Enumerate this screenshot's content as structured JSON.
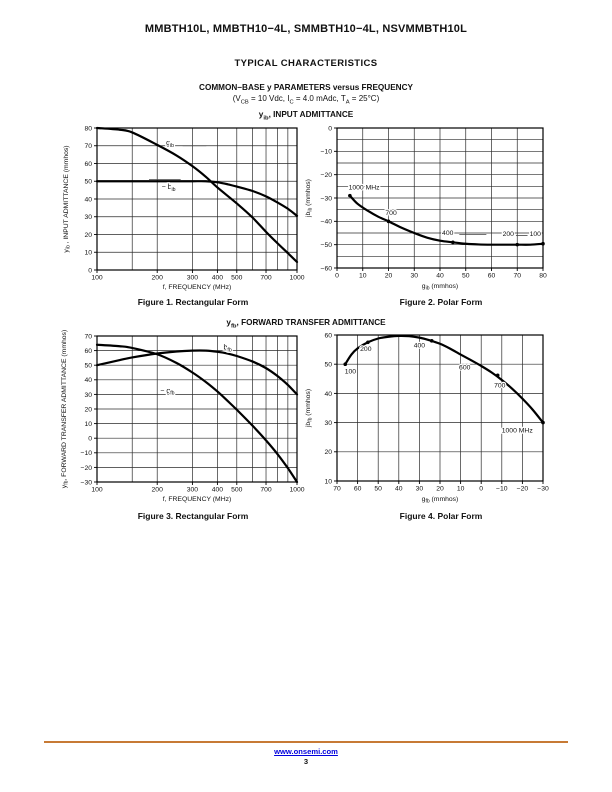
{
  "page": {
    "header_title": "MMBTH10L, MMBTH10−4L, SMMBTH10−4L, NSVMMBTH10L",
    "section_title": "TYPICAL CHARACTERISTICS",
    "group_title": "COMMON−BASE y PARAMETERS versus FREQUENCY",
    "group_conditions": "(V~CB~ = 10 Vdc, I~C~ = 4.0 mAdc, T~A~ = 25°C)",
    "row1_title": "y~ib~, INPUT ADMITTANCE",
    "row2_title": "y~fb~, FORWARD TRANSFER ADMITTANCE",
    "footer": {
      "link_label": "www.onsemi.com",
      "page_number": "3",
      "rule_color": "#c77a35",
      "link_color": "#0000dd"
    }
  },
  "chart_data": [
    {
      "name": "figure-1",
      "type": "line",
      "caption": "Figure 1. Rectangular Form",
      "xlabel": "f, FREQUENCY (MHz)",
      "ylabel": "y~ib~ , INPUT ADMITTANCE (mmhos)",
      "x_scale": "log",
      "x_range": [
        100,
        1000
      ],
      "x_gridlines": [
        100,
        150,
        200,
        300,
        400,
        500,
        600,
        700,
        800,
        900,
        1000
      ],
      "x_ticks": [
        {
          "v": 100,
          "t": "100"
        },
        {
          "v": 200,
          "t": "200"
        },
        {
          "v": 300,
          "t": "300"
        },
        {
          "v": 400,
          "t": "400"
        },
        {
          "v": 500,
          "t": "500"
        },
        {
          "v": 700,
          "t": "700"
        },
        {
          "v": 1000,
          "t": "1000"
        }
      ],
      "y_range": [
        0,
        80
      ],
      "y_grid_step": 10,
      "y_ticks": [
        {
          "v": 0,
          "t": "0"
        },
        {
          "v": 10,
          "t": "10"
        },
        {
          "v": 20,
          "t": "20"
        },
        {
          "v": 30,
          "t": "30"
        },
        {
          "v": 40,
          "t": "40"
        },
        {
          "v": 50,
          "t": "50"
        },
        {
          "v": 60,
          "t": "60"
        },
        {
          "v": 70,
          "t": "70"
        },
        {
          "v": 80,
          "t": "80"
        }
      ],
      "series": [
        {
          "name": "g_ib",
          "label": "g~ib~",
          "label_at": [
            232,
            70.3
          ],
          "leader": [
            [
              268,
              70
            ],
            [
              352,
              70
            ]
          ],
          "points": [
            [
              100,
              80
            ],
            [
              130,
              79
            ],
            [
              150,
              77.5
            ],
            [
              200,
              70.5
            ],
            [
              250,
              64.5
            ],
            [
              300,
              58.5
            ],
            [
              350,
              52.5
            ],
            [
              400,
              46.5
            ],
            [
              500,
              37.5
            ],
            [
              600,
              29.5
            ],
            [
              700,
              21.5
            ],
            [
              800,
              15
            ],
            [
              900,
              9.5
            ],
            [
              1000,
              4.5
            ]
          ]
        },
        {
          "name": "-b_ib",
          "label": "− b~ib~",
          "label_at": [
            228,
            45.5
          ],
          "leader": [
            [
              182,
              50.9
            ],
            [
              262,
              50.9
            ]
          ],
          "points": [
            [
              100,
              50
            ],
            [
              150,
              50
            ],
            [
              200,
              50
            ],
            [
              250,
              50
            ],
            [
              300,
              50
            ],
            [
              350,
              50
            ],
            [
              400,
              49.4
            ],
            [
              450,
              48.3
            ],
            [
              500,
              47
            ],
            [
              600,
              44.5
            ],
            [
              700,
              41.5
            ],
            [
              800,
              38
            ],
            [
              900,
              34.5
            ],
            [
              1000,
              30.5
            ]
          ]
        }
      ],
      "point_labels": []
    },
    {
      "name": "figure-2",
      "type": "line",
      "caption": "Figure 2. Polar Form",
      "xlabel": "g~ib~ (mmhos)",
      "ylabel": "jb~ib~ (mmhos)",
      "x_scale": "linear",
      "x_range": [
        0,
        80
      ],
      "x_grid_step": 10,
      "x_ticks": [
        {
          "v": 0,
          "t": "0"
        },
        {
          "v": 10,
          "t": "10"
        },
        {
          "v": 20,
          "t": "20"
        },
        {
          "v": 30,
          "t": "30"
        },
        {
          "v": 40,
          "t": "40"
        },
        {
          "v": 50,
          "t": "50"
        },
        {
          "v": 60,
          "t": "60"
        },
        {
          "v": 70,
          "t": "70"
        },
        {
          "v": 80,
          "t": "80"
        }
      ],
      "y_range": [
        -60,
        0
      ],
      "y_grid_step": 5,
      "y_ticks": [
        {
          "v": 0,
          "t": "0"
        },
        {
          "v": -10,
          "t": "−10"
        },
        {
          "v": -20,
          "t": "−20"
        },
        {
          "v": -30,
          "t": "−30"
        },
        {
          "v": -40,
          "t": "−40"
        },
        {
          "v": -50,
          "t": "−50"
        },
        {
          "v": -60,
          "t": "−60"
        }
      ],
      "series": [
        {
          "name": "y_ib_locus",
          "points": [
            [
              5,
              -29
            ],
            [
              8,
              -32.5
            ],
            [
              12,
              -35.5
            ],
            [
              16,
              -38
            ],
            [
              20,
              -40
            ],
            [
              25,
              -42.7
            ],
            [
              30,
              -45
            ],
            [
              35,
              -47
            ],
            [
              40,
              -48.3
            ],
            [
              45,
              -49
            ],
            [
              50,
              -49.6
            ],
            [
              55,
              -49.9
            ],
            [
              60,
              -50
            ],
            [
              65,
              -50
            ],
            [
              70,
              -50
            ],
            [
              75,
              -50
            ],
            [
              80,
              -49.6
            ]
          ],
          "markers": [
            [
              5,
              -29
            ],
            [
              20,
              -40
            ],
            [
              45,
              -49
            ],
            [
              70,
              -50
            ],
            [
              80,
              -49.6
            ]
          ]
        }
      ],
      "point_labels": [
        {
          "t": "1000 MHz",
          "x": 4.5,
          "y": -26.3,
          "anchor": "start"
        },
        {
          "t": "700",
          "x": 21,
          "y": -37.3,
          "anchor": "middle"
        },
        {
          "t": "400",
          "x": 43,
          "y": -45.8,
          "anchor": "middle",
          "leader": [
            [
              47.5,
              -45.6
            ],
            [
              58,
              -45.6
            ]
          ]
        },
        {
          "t": "200",
          "x": 66.5,
          "y": -46.3,
          "anchor": "middle",
          "leader": [
            [
              69.5,
              -46.1
            ],
            [
              74,
              -46.1
            ]
          ]
        },
        {
          "t": "100",
          "x": 77,
          "y": -46.3,
          "anchor": "middle"
        }
      ]
    },
    {
      "name": "figure-3",
      "type": "line",
      "caption": "Figure 3. Rectangular Form",
      "xlabel": "f, FREQUENCY (MHz)",
      "ylabel": "y~fb~, FORWARD TRANSFER ADMITTANCE (mmhos)",
      "x_scale": "log",
      "x_range": [
        100,
        1000
      ],
      "x_gridlines": [
        100,
        150,
        200,
        300,
        400,
        500,
        600,
        700,
        800,
        900,
        1000
      ],
      "x_ticks": [
        {
          "v": 100,
          "t": "100"
        },
        {
          "v": 200,
          "t": "200"
        },
        {
          "v": 300,
          "t": "300"
        },
        {
          "v": 400,
          "t": "400"
        },
        {
          "v": 500,
          "t": "500"
        },
        {
          "v": 700,
          "t": "700"
        },
        {
          "v": 1000,
          "t": "1000"
        }
      ],
      "y_range": [
        -30,
        70
      ],
      "y_grid_step": 10,
      "y_ticks": [
        {
          "v": 70,
          "t": "70"
        },
        {
          "v": 60,
          "t": "60"
        },
        {
          "v": 50,
          "t": "50"
        },
        {
          "v": 40,
          "t": "40"
        },
        {
          "v": 30,
          "t": "30"
        },
        {
          "v": 20,
          "t": "20"
        },
        {
          "v": 10,
          "t": "10"
        },
        {
          "v": 0,
          "t": "0"
        },
        {
          "v": -10,
          "t": "−10"
        },
        {
          "v": -20,
          "t": "−20"
        },
        {
          "v": -30,
          "t": "−30"
        }
      ],
      "series": [
        {
          "name": "b_fb",
          "label": "b~fb~",
          "label_at": [
            450,
            60.6
          ],
          "leader": [
            [
              530,
              60
            ],
            [
              640,
              60
            ]
          ],
          "points": [
            [
              100,
              50
            ],
            [
              130,
              53.5
            ],
            [
              150,
              55.3
            ],
            [
              200,
              58
            ],
            [
              250,
              59.4
            ],
            [
              300,
              60
            ],
            [
              350,
              60
            ],
            [
              400,
              59.2
            ],
            [
              450,
              58
            ],
            [
              500,
              56.3
            ],
            [
              600,
              52.5
            ],
            [
              700,
              48
            ],
            [
              800,
              42.5
            ],
            [
              900,
              36.5
            ],
            [
              1000,
              30
            ]
          ]
        },
        {
          "name": "-g_fb",
          "label": "− g~fb~",
          "label_at": [
            225,
            31
          ],
          "points": [
            [
              100,
              64
            ],
            [
              130,
              63
            ],
            [
              150,
              61.8
            ],
            [
              200,
              57.5
            ],
            [
              250,
              51.5
            ],
            [
              300,
              45
            ],
            [
              350,
              38.5
            ],
            [
              400,
              32
            ],
            [
              450,
              25.5
            ],
            [
              500,
              19.5
            ],
            [
              600,
              8.5
            ],
            [
              700,
              -1.5
            ],
            [
              800,
              -11
            ],
            [
              900,
              -20.5
            ],
            [
              1000,
              -30
            ]
          ]
        }
      ],
      "point_labels": []
    },
    {
      "name": "figure-4",
      "type": "line",
      "caption": "Figure 4. Polar Form",
      "xlabel": "g~fb~ (mmhos)",
      "ylabel": "jb~fb~ (mmhos)",
      "x_scale": "linear",
      "x_range": [
        70,
        -30
      ],
      "x_grid_step": 10,
      "x_ticks": [
        {
          "v": 70,
          "t": "70"
        },
        {
          "v": 60,
          "t": "60"
        },
        {
          "v": 50,
          "t": "50"
        },
        {
          "v": 40,
          "t": "40"
        },
        {
          "v": 30,
          "t": "30"
        },
        {
          "v": 20,
          "t": "20"
        },
        {
          "v": 10,
          "t": "10"
        },
        {
          "v": 0,
          "t": "0"
        },
        {
          "v": -10,
          "t": "−10"
        },
        {
          "v": -20,
          "t": "−20"
        },
        {
          "v": -30,
          "t": "−30"
        }
      ],
      "y_range": [
        10,
        60
      ],
      "y_grid_step": 10,
      "y_ticks": [
        {
          "v": 10,
          "t": "10"
        },
        {
          "v": 20,
          "t": "20"
        },
        {
          "v": 30,
          "t": "30"
        },
        {
          "v": 40,
          "t": "40"
        },
        {
          "v": 50,
          "t": "50"
        },
        {
          "v": 60,
          "t": "60"
        }
      ],
      "series": [
        {
          "name": "y_fb_locus",
          "points": [
            [
              66,
              50
            ],
            [
              63,
              53.3
            ],
            [
              60,
              55.4
            ],
            [
              55,
              57.5
            ],
            [
              50,
              58.8
            ],
            [
              45,
              59.4
            ],
            [
              40,
              59.7
            ],
            [
              35,
              59.6
            ],
            [
              30,
              59.1
            ],
            [
              25,
              58.2
            ],
            [
              20,
              57
            ],
            [
              15,
              55.3
            ],
            [
              10,
              53.3
            ],
            [
              5,
              51.4
            ],
            [
              0,
              49.4
            ],
            [
              -5,
              47.2
            ],
            [
              -10,
              44.6
            ],
            [
              -15,
              41.6
            ],
            [
              -20,
              38.2
            ],
            [
              -25,
              34.4
            ],
            [
              -30,
              30
            ]
          ],
          "markers": [
            [
              66,
              50
            ],
            [
              55,
              57.5
            ],
            [
              24,
              58
            ],
            [
              -8,
              46.2
            ],
            [
              -30,
              30
            ]
          ]
        }
      ],
      "point_labels": [
        {
          "t": "100",
          "x": 63.5,
          "y": 46.8,
          "anchor": "middle"
        },
        {
          "t": "200",
          "x": 56,
          "y": 54.6,
          "anchor": "middle"
        },
        {
          "t": "400",
          "x": 30,
          "y": 55.8,
          "anchor": "middle"
        },
        {
          "t": "600",
          "x": 8,
          "y": 48.2,
          "anchor": "middle"
        },
        {
          "t": "700",
          "x": -9,
          "y": 42,
          "anchor": "middle"
        },
        {
          "t": "1000 MHz",
          "x": -17.5,
          "y": 26.6,
          "anchor": "middle"
        }
      ]
    }
  ]
}
